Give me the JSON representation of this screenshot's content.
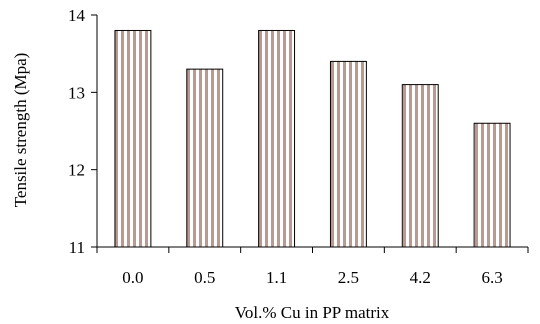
{
  "chart_data": {
    "type": "bar",
    "title": "",
    "xlabel": "Vol.% Cu in PP matrix",
    "ylabel": "Tensile strength (Mpa)",
    "categories": [
      "0.0",
      "0.5",
      "1.1",
      "2.5",
      "4.2",
      "6.3"
    ],
    "values": [
      13.8,
      13.3,
      13.8,
      13.4,
      13.1,
      12.6
    ],
    "ylim": [
      11,
      14
    ],
    "yticks": [
      "11",
      "12",
      "13",
      "14"
    ],
    "grid": false,
    "legend": "none",
    "bar_fill": "#ffffff",
    "bar_stripe_color": "#b89a92",
    "bar_edge_color": "#000000"
  }
}
